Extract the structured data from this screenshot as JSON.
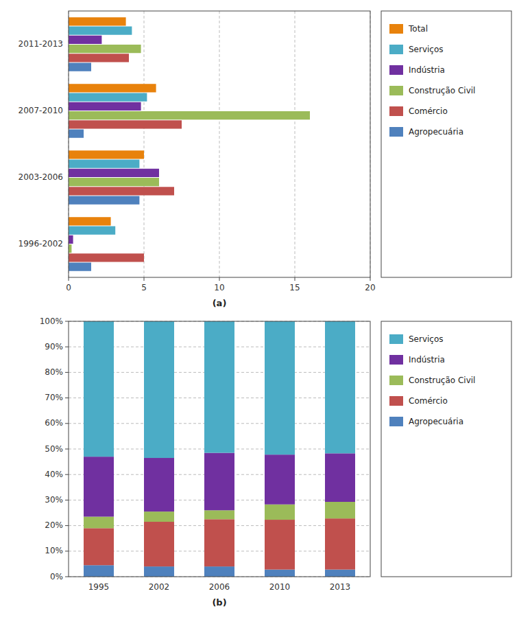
{
  "chart_data": [
    {
      "type": "bar",
      "orientation": "horizontal",
      "xlabel": "(a)",
      "categories": [
        "1996-2002",
        "2003-2006",
        "2007-2010",
        "2011-2013"
      ],
      "series": [
        {
          "name": "Total",
          "color": "#E8820C",
          "values": [
            2.8,
            5.0,
            5.8,
            3.8
          ]
        },
        {
          "name": "Serviços",
          "color": "#4BACC6",
          "values": [
            3.1,
            4.7,
            5.2,
            4.2
          ]
        },
        {
          "name": "Indústria",
          "color": "#7030A0",
          "values": [
            0.3,
            6.0,
            4.8,
            2.2
          ]
        },
        {
          "name": "Construção Civil",
          "color": "#9BBB59",
          "values": [
            0.2,
            6.0,
            16.0,
            4.8
          ]
        },
        {
          "name": "Comércio",
          "color": "#C0504D",
          "values": [
            5.0,
            7.0,
            7.5,
            4.0
          ]
        },
        {
          "name": "Agropecuária",
          "color": "#4F81BD",
          "values": [
            1.5,
            4.7,
            1.0,
            1.5
          ]
        }
      ],
      "xlim": [
        0,
        20
      ],
      "xticks": [
        0,
        5,
        10,
        15,
        20
      ],
      "grid": true,
      "legend": "right"
    },
    {
      "type": "bar",
      "stacked": true,
      "xlabel": "(b)",
      "categories": [
        "1995",
        "2002",
        "2006",
        "2010",
        "2013"
      ],
      "series": [
        {
          "name": "Agropecuária",
          "color": "#4F81BD",
          "values": [
            4.5,
            4.0,
            4.0,
            2.8,
            2.8
          ]
        },
        {
          "name": "Comércio",
          "color": "#C0504D",
          "values": [
            14.5,
            17.5,
            18.5,
            19.5,
            20.0
          ]
        },
        {
          "name": "Construção Civil",
          "color": "#9BBB59",
          "values": [
            4.5,
            4.0,
            3.5,
            6.0,
            6.5
          ]
        },
        {
          "name": "Indústria",
          "color": "#7030A0",
          "values": [
            23.5,
            21.0,
            22.5,
            19.5,
            19.0
          ]
        },
        {
          "name": "Serviços",
          "color": "#4BACC6",
          "values": [
            53.0,
            53.5,
            51.5,
            52.2,
            51.7
          ]
        }
      ],
      "ylim": [
        0,
        100
      ],
      "yticks": [
        {
          "value": 0,
          "label": "0%"
        },
        {
          "value": 10,
          "label": "10%"
        },
        {
          "value": 20,
          "label": "20%"
        },
        {
          "value": 30,
          "label": "30%"
        },
        {
          "value": 40,
          "label": "40%"
        },
        {
          "value": 50,
          "label": "50%"
        },
        {
          "value": 60,
          "label": "60%"
        },
        {
          "value": 70,
          "label": "70%"
        },
        {
          "value": 80,
          "label": "80%"
        },
        {
          "value": 90,
          "label": "90%"
        },
        {
          "value": 100,
          "label": "100%"
        }
      ],
      "grid": true,
      "legend": "right"
    }
  ]
}
